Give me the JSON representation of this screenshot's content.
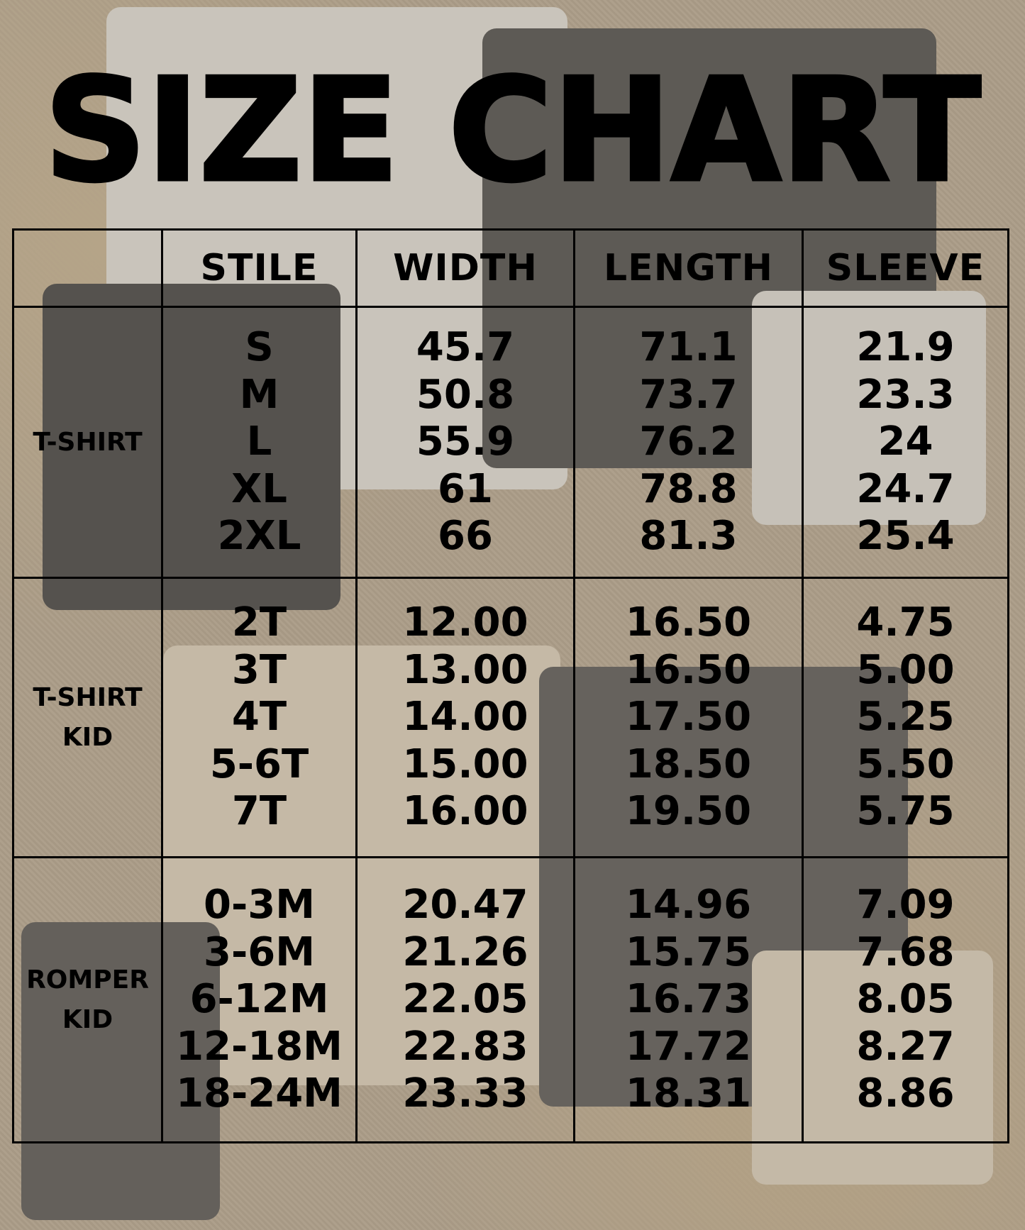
{
  "title": "SIZE CHART",
  "colors": {
    "text": "#000000",
    "background": "#ab9d88"
  },
  "table": {
    "headers": [
      "",
      "STILE",
      "WIDTH",
      "LENGTH",
      "SLEEVE"
    ],
    "groups": [
      {
        "category": [
          "T-SHIRT"
        ],
        "stile": [
          "S",
          "M",
          "L",
          "XL",
          "2XL"
        ],
        "width": [
          "45.7",
          "50.8",
          "55.9",
          "61",
          "66"
        ],
        "length": [
          "71.1",
          "73.7",
          "76.2",
          "78.8",
          "81.3"
        ],
        "sleeve": [
          "21.9",
          "23.3",
          "24",
          "24.7",
          "25.4"
        ]
      },
      {
        "category": [
          "T-SHIRT",
          "KID"
        ],
        "stile": [
          "2T",
          "3T",
          "4T",
          "5-6T",
          "7T"
        ],
        "width": [
          "12.00",
          "13.00",
          "14.00",
          "15.00",
          "16.00"
        ],
        "length": [
          "16.50",
          "16.50",
          "17.50",
          "18.50",
          "19.50"
        ],
        "sleeve": [
          "4.75",
          "5.00",
          "5.25",
          "5.50",
          "5.75"
        ]
      },
      {
        "category": [
          "ROMPER",
          "KID"
        ],
        "stile": [
          "0-3M",
          "3-6M",
          "6-12M",
          "12-18M",
          "18-24M"
        ],
        "width": [
          "20.47",
          "21.26",
          "22.05",
          "22.83",
          "23.33"
        ],
        "length": [
          "14.96",
          "15.75",
          "16.73",
          "17.72",
          "18.31"
        ],
        "sleeve": [
          "7.09",
          "7.68",
          "8.05",
          "8.27",
          "8.86"
        ]
      }
    ]
  }
}
